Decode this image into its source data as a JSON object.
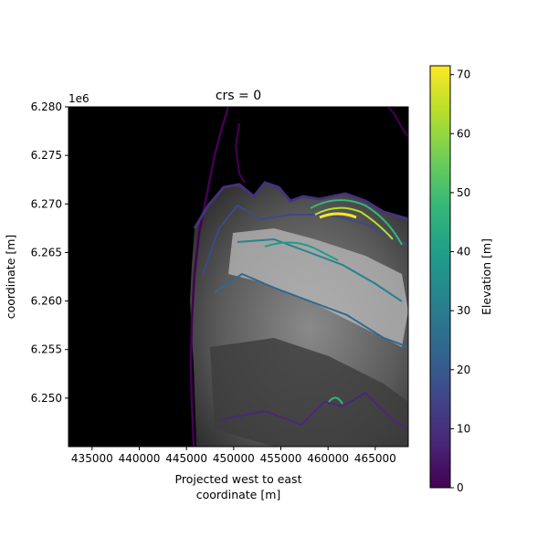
{
  "chart_data": {
    "type": "heatmap",
    "title": "crs = 0",
    "xlabel_line1": "Projected west to east",
    "xlabel_line2": "coordinate [m]",
    "ylabel": "coordinate [m]",
    "y_offset_label": "1e6",
    "xlim": [
      432500,
      468500
    ],
    "ylim": [
      6245000,
      6280000
    ],
    "x_ticks": [
      {
        "value": 435000,
        "label": "435000"
      },
      {
        "value": 440000,
        "label": "440000"
      },
      {
        "value": 445000,
        "label": "445000"
      },
      {
        "value": 450000,
        "label": "450000"
      },
      {
        "value": 455000,
        "label": "455000"
      },
      {
        "value": 460000,
        "label": "460000"
      },
      {
        "value": 465000,
        "label": "465000"
      }
    ],
    "y_ticks": [
      {
        "value": 6250000,
        "label": "6.250"
      },
      {
        "value": 6255000,
        "label": "6.255"
      },
      {
        "value": 6260000,
        "label": "6.260"
      },
      {
        "value": 6265000,
        "label": "6.265"
      },
      {
        "value": 6270000,
        "label": "6.270"
      },
      {
        "value": 6275000,
        "label": "6.275"
      },
      {
        "value": 6280000,
        "label": "6.280"
      }
    ],
    "colorbar": {
      "label": "Elevation [m]",
      "colormap": "viridis",
      "range": [
        0,
        71.5
      ],
      "ticks": [
        {
          "value": 0,
          "label": "0"
        },
        {
          "value": 10,
          "label": "10"
        },
        {
          "value": 20,
          "label": "20"
        },
        {
          "value": 30,
          "label": "30"
        },
        {
          "value": 40,
          "label": "40"
        },
        {
          "value": 50,
          "label": "50"
        },
        {
          "value": 60,
          "label": "60"
        },
        {
          "value": 70,
          "label": "70"
        }
      ],
      "stops": [
        "#440154",
        "#482878",
        "#3e4989",
        "#31688e",
        "#26828e",
        "#1f9e89",
        "#35b779",
        "#6ece58",
        "#b5de2b",
        "#fde725"
      ]
    },
    "background_color": "#000000",
    "contour_levels_m": [
      0,
      10,
      20,
      30,
      40,
      50,
      60,
      70
    ]
  }
}
